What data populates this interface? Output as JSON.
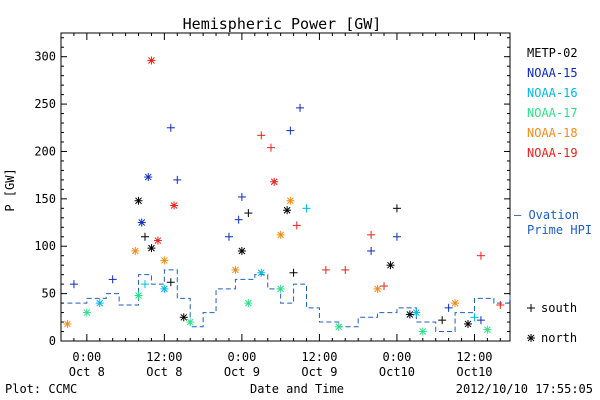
{
  "chart_data": {
    "type": "scatter",
    "title": "Hemispheric Power [GW]",
    "ylabel": "P [GW]",
    "xlabel": "Date and Time",
    "ylim": [
      0,
      325
    ],
    "xlim": [
      "2012-10-07T20:00",
      "2012-10-10T17:30"
    ],
    "x_tick_labels": [
      {
        "x": "2012-10-08T00:00",
        "time": "0:00",
        "date": "Oct 8"
      },
      {
        "x": "2012-10-08T12:00",
        "time": "12:00",
        "date": "Oct 8"
      },
      {
        "x": "2012-10-09T00:00",
        "time": "0:00",
        "date": "Oct 9"
      },
      {
        "x": "2012-10-09T12:00",
        "time": "12:00",
        "date": "Oct 9"
      },
      {
        "x": "2012-10-10T00:00",
        "time": "0:00",
        "date": "Oct10"
      },
      {
        "x": "2012-10-10T12:00",
        "time": "12:00",
        "date": "Oct10"
      }
    ],
    "y_ticks": [
      0,
      50,
      100,
      150,
      200,
      250,
      300
    ],
    "grid": false,
    "legend_placement": "right",
    "footer_left": "Plot: CCMC",
    "footer_right": "2012/10/10 17:55:05",
    "marker_legend": [
      {
        "symbol": "+",
        "label": "south"
      },
      {
        "symbol": "*",
        "label": "north"
      }
    ],
    "ovation_label_line1": "— Ovation",
    "ovation_label_line2": "Prime HPI",
    "ovation_color": "#1f5fbf",
    "series": [
      {
        "name": "METP-02",
        "color": "#000000",
        "points": [
          [
            "2012-10-08T08:00",
            148,
            "*"
          ],
          [
            "2012-10-08T09:00",
            110,
            "+"
          ],
          [
            "2012-10-08T10:00",
            98,
            "*"
          ],
          [
            "2012-10-08T13:00",
            62,
            "+"
          ],
          [
            "2012-10-08T15:00",
            25,
            "*"
          ],
          [
            "2012-10-09T00:00",
            95,
            "*"
          ],
          [
            "2012-10-09T01:00",
            135,
            "+"
          ],
          [
            "2012-10-09T07:00",
            138,
            "*"
          ],
          [
            "2012-10-09T08:00",
            72,
            "+"
          ],
          [
            "2012-10-09T23:00",
            80,
            "*"
          ],
          [
            "2012-10-10T00:00",
            140,
            "+"
          ],
          [
            "2012-10-10T02:00",
            28,
            "*"
          ],
          [
            "2012-10-10T07:00",
            22,
            "+"
          ],
          [
            "2012-10-10T11:00",
            18,
            "*"
          ]
        ]
      },
      {
        "name": "NOAA-15",
        "color": "#0a2bbf",
        "points": [
          [
            "2012-10-07T22:00",
            60,
            "+"
          ],
          [
            "2012-10-08T04:00",
            65,
            "+"
          ],
          [
            "2012-10-08T08:30",
            125,
            "*"
          ],
          [
            "2012-10-08T09:30",
            173,
            "*"
          ],
          [
            "2012-10-08T13:00",
            225,
            "+"
          ],
          [
            "2012-10-08T14:00",
            170,
            "+"
          ],
          [
            "2012-10-08T22:00",
            110,
            "+"
          ],
          [
            "2012-10-08T23:30",
            128,
            "+"
          ],
          [
            "2012-10-09T00:00",
            152,
            "+"
          ],
          [
            "2012-10-09T07:30",
            222,
            "+"
          ],
          [
            "2012-10-09T09:00",
            246,
            "+"
          ],
          [
            "2012-10-09T20:00",
            95,
            "+"
          ],
          [
            "2012-10-10T00:00",
            110,
            "+"
          ],
          [
            "2012-10-10T08:00",
            35,
            "+"
          ],
          [
            "2012-10-10T13:00",
            22,
            "+"
          ]
        ]
      },
      {
        "name": "NOAA-16",
        "color": "#00b8e6",
        "points": [
          [
            "2012-10-08T02:00",
            40,
            "*"
          ],
          [
            "2012-10-08T09:00",
            60,
            "+"
          ],
          [
            "2012-10-08T12:00",
            55,
            "*"
          ],
          [
            "2012-10-09T03:00",
            72,
            "*"
          ],
          [
            "2012-10-09T10:00",
            140,
            "+"
          ],
          [
            "2012-10-10T03:00",
            30,
            "*"
          ],
          [
            "2012-10-10T12:00",
            25,
            "+"
          ]
        ]
      },
      {
        "name": "NOAA-17",
        "color": "#2ee08a",
        "points": [
          [
            "2012-10-08T00:00",
            30,
            "*"
          ],
          [
            "2012-10-08T08:00",
            48,
            "*"
          ],
          [
            "2012-10-08T16:00",
            20,
            "*"
          ],
          [
            "2012-10-09T01:00",
            40,
            "*"
          ],
          [
            "2012-10-09T06:00",
            55,
            "*"
          ],
          [
            "2012-10-09T15:00",
            15,
            "*"
          ],
          [
            "2012-10-10T04:00",
            10,
            "*"
          ],
          [
            "2012-10-10T14:00",
            12,
            "*"
          ]
        ]
      },
      {
        "name": "NOAA-18",
        "color": "#f08c1a",
        "points": [
          [
            "2012-10-07T21:00",
            18,
            "*"
          ],
          [
            "2012-10-08T07:30",
            95,
            "*"
          ],
          [
            "2012-10-08T12:00",
            85,
            "*"
          ],
          [
            "2012-10-08T23:00",
            75,
            "*"
          ],
          [
            "2012-10-09T06:00",
            112,
            "*"
          ],
          [
            "2012-10-09T07:30",
            148,
            "*"
          ],
          [
            "2012-10-09T21:00",
            55,
            "*"
          ],
          [
            "2012-10-10T09:00",
            40,
            "*"
          ]
        ]
      },
      {
        "name": "NOAA-19",
        "color": "#e8221a",
        "points": [
          [
            "2012-10-08T10:00",
            296,
            "*"
          ],
          [
            "2012-10-08T13:30",
            143,
            "*"
          ],
          [
            "2012-10-08T11:00",
            106,
            "*"
          ],
          [
            "2012-10-09T03:00",
            217,
            "+"
          ],
          [
            "2012-10-09T04:30",
            204,
            "+"
          ],
          [
            "2012-10-09T05:00",
            168,
            "*"
          ],
          [
            "2012-10-09T08:30",
            122,
            "+"
          ],
          [
            "2012-10-09T13:00",
            75,
            "+"
          ],
          [
            "2012-10-09T16:00",
            75,
            "+"
          ],
          [
            "2012-10-09T20:00",
            112,
            "+"
          ],
          [
            "2012-10-09T22:00",
            58,
            "+"
          ],
          [
            "2012-10-10T13:00",
            90,
            "+"
          ],
          [
            "2012-10-10T16:00",
            38,
            "+"
          ]
        ]
      }
    ],
    "ovation_values": [
      [
        "2012-10-07T21:00",
        40
      ],
      [
        "2012-10-08T00:00",
        45
      ],
      [
        "2012-10-08T03:00",
        50
      ],
      [
        "2012-10-08T05:00",
        38
      ],
      [
        "2012-10-08T08:00",
        70
      ],
      [
        "2012-10-08T10:00",
        60
      ],
      [
        "2012-10-08T12:00",
        75
      ],
      [
        "2012-10-08T14:00",
        45
      ],
      [
        "2012-10-08T16:00",
        15
      ],
      [
        "2012-10-08T18:00",
        30
      ],
      [
        "2012-10-08T20:00",
        55
      ],
      [
        "2012-10-08T23:00",
        65
      ],
      [
        "2012-10-09T02:00",
        70
      ],
      [
        "2012-10-09T04:00",
        55
      ],
      [
        "2012-10-09T06:00",
        40
      ],
      [
        "2012-10-09T08:00",
        60
      ],
      [
        "2012-10-09T10:00",
        35
      ],
      [
        "2012-10-09T12:00",
        20
      ],
      [
        "2012-10-09T15:00",
        15
      ],
      [
        "2012-10-09T18:00",
        25
      ],
      [
        "2012-10-09T21:00",
        30
      ],
      [
        "2012-10-10T00:00",
        35
      ],
      [
        "2012-10-10T03:00",
        20
      ],
      [
        "2012-10-10T06:00",
        10
      ],
      [
        "2012-10-10T09:00",
        30
      ],
      [
        "2012-10-10T12:00",
        45
      ],
      [
        "2012-10-10T15:00",
        40
      ],
      [
        "2012-10-10T17:30",
        50
      ]
    ]
  }
}
